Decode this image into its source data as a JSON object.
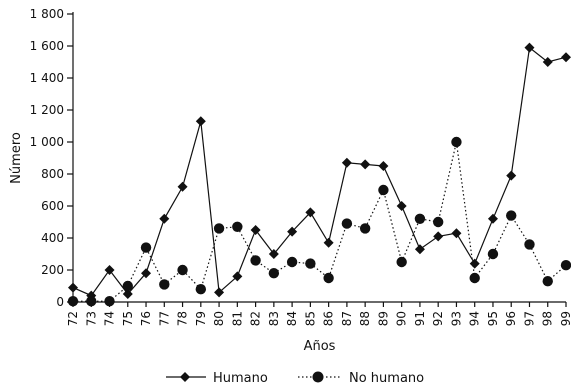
{
  "chart_data": {
    "type": "line",
    "xlabel": "Años",
    "ylabel": "Número",
    "ylim": [
      0,
      1800
    ],
    "y_ticks": [
      0,
      200,
      400,
      600,
      800,
      1000,
      1200,
      1400,
      1600,
      1800
    ],
    "y_tick_labels": [
      "0",
      "200",
      "400",
      "600",
      "800",
      "1 000",
      "1 200",
      "1 400",
      "1 600",
      "1 800"
    ],
    "categories": [
      "72",
      "73",
      "74",
      "75",
      "76",
      "77",
      "78",
      "79",
      "80",
      "81",
      "82",
      "83",
      "84",
      "85",
      "86",
      "87",
      "88",
      "89",
      "90",
      "91",
      "92",
      "93",
      "94",
      "95",
      "96",
      "97",
      "98",
      "99"
    ],
    "grid": false,
    "legend_position": "bottom",
    "series": [
      {
        "name": "Humano",
        "marker": "diamond",
        "line_style": "solid",
        "values": [
          90,
          40,
          200,
          50,
          180,
          520,
          720,
          1130,
          60,
          160,
          450,
          300,
          440,
          560,
          370,
          870,
          860,
          850,
          600,
          330,
          410,
          430,
          240,
          520,
          790,
          1590,
          1500,
          1530
        ]
      },
      {
        "name": "No humano",
        "marker": "circle",
        "line_style": "dotted",
        "values": [
          5,
          5,
          5,
          100,
          340,
          110,
          200,
          80,
          460,
          470,
          260,
          180,
          250,
          240,
          150,
          490,
          460,
          700,
          250,
          520,
          500,
          1000,
          150,
          300,
          540,
          360,
          130,
          230
        ]
      }
    ]
  }
}
